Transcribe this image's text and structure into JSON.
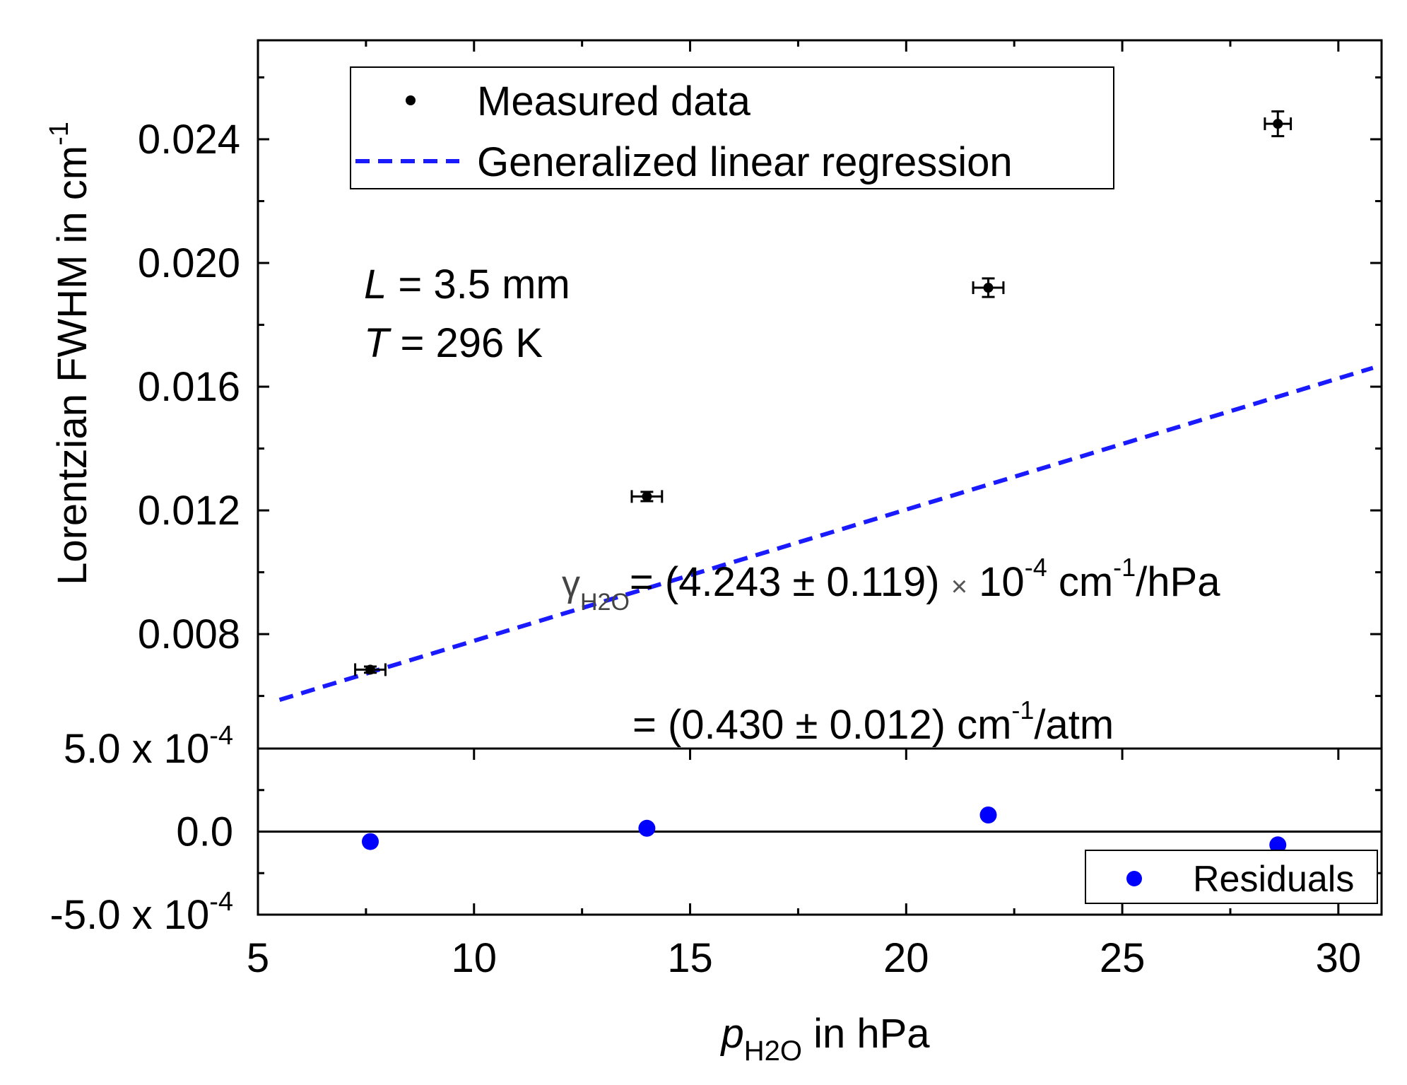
{
  "chart_data": {
    "type": "scatter",
    "xlabel": {
      "var": "p",
      "sub": "H2O",
      "rest": " in hPa"
    },
    "ylabel": {
      "base": "Lorentzian FWHM in cm",
      "sup": "-1"
    },
    "xlim": [
      5,
      31
    ],
    "x_ticks": [
      5,
      10,
      15,
      20,
      25,
      30
    ],
    "x_tick_labels": [
      "5",
      "10",
      "15",
      "20",
      "25",
      "30"
    ],
    "main_panel": {
      "ylim": [
        0.0043,
        0.0272
      ],
      "y_ticks": [
        0.008,
        0.012,
        0.016,
        0.02,
        0.024
      ],
      "y_tick_labels": [
        "0.008",
        "0.012",
        "0.016",
        "0.020",
        "0.024"
      ],
      "series": [
        {
          "name": "Measured data",
          "kind": "points",
          "color": "#000000",
          "x": [
            7.6,
            14.0,
            21.9,
            28.6
          ],
          "y": [
            0.00685,
            0.01245,
            0.0192,
            0.0245
          ],
          "x_err": [
            0.35,
            0.35,
            0.35,
            0.3
          ],
          "y_err": [
            0.0001,
            0.00015,
            0.0003,
            0.0004
          ]
        },
        {
          "name": "Generalized linear regression",
          "kind": "dashed-line",
          "color": "#1a1aff",
          "slope": 0.0004243,
          "intercept": 0.00354,
          "x_range": [
            5.5,
            30.8
          ]
        }
      ],
      "legend": [
        {
          "label": "Measured data",
          "symbol": "dot"
        },
        {
          "label": "Generalized linear regression",
          "symbol": "dash"
        }
      ],
      "annotations": {
        "length": {
          "var": "L",
          "text": " = 3.5 mm"
        },
        "temperature": {
          "var": "T",
          "text": " = 296 K"
        },
        "gamma": {
          "symbol": "γ",
          "sub": "H2O",
          "p1": "= (4.243 ± 0.119) ",
          "times": "×",
          "p2": " 10",
          "sup1": "-4",
          "p3": " cm",
          "sup2": "-1",
          "p4": "/hPa"
        },
        "atm": {
          "p1": "= (0.430 ± 0.012) cm",
          "sup": "-1",
          "p2": "/atm"
        }
      }
    },
    "residual_panel": {
      "ylim": [
        -0.0005,
        0.0005
      ],
      "y_ticks": [
        -0.0005,
        0.0,
        0.0005
      ],
      "y_tick_labels": [
        {
          "base": "-5.0 x 10",
          "sup": "-4"
        },
        {
          "base": "0.0",
          "sup": ""
        },
        {
          "base": "5.0 x 10",
          "sup": "-4"
        }
      ],
      "series": [
        {
          "name": "Residuals",
          "kind": "points",
          "color": "#0000ff",
          "x": [
            7.6,
            14.0,
            21.9,
            28.6
          ],
          "y": [
            -6e-05,
            2e-05,
            0.0001,
            -8e-05
          ]
        }
      ],
      "legend": [
        {
          "label": "Residuals",
          "symbol": "dot"
        }
      ]
    }
  }
}
